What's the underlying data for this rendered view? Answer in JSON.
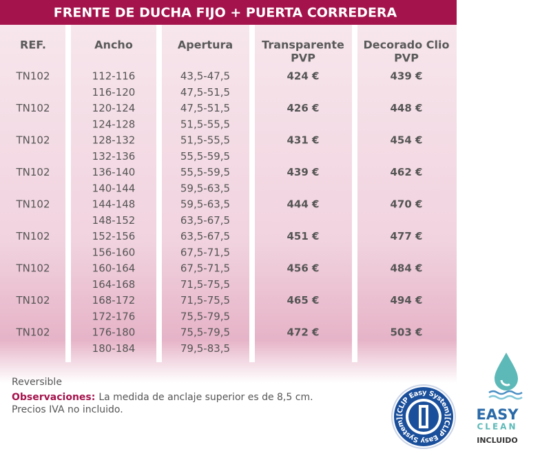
{
  "header": {
    "title": "FRENTE DE DUCHA FIJO + PUERTA CORREDERA"
  },
  "table": {
    "columns": [
      [
        "REF."
      ],
      [
        "Ancho"
      ],
      [
        "Apertura"
      ],
      [
        "Transparente",
        "PVP"
      ],
      [
        "Decorado Clio",
        "PVP"
      ]
    ],
    "rows": [
      {
        "ref": "TN102",
        "ancho": [
          "112-116",
          "116-120"
        ],
        "apertura": [
          "43,5-47,5",
          "47,5-51,5"
        ],
        "transparente": "424 €",
        "decorado": "439 €"
      },
      {
        "ref": "TN102",
        "ancho": [
          "120-124",
          "124-128"
        ],
        "apertura": [
          "47,5-51,5",
          "51,5-55,5"
        ],
        "transparente": "426 €",
        "decorado": "448 €"
      },
      {
        "ref": "TN102",
        "ancho": [
          "128-132",
          "132-136"
        ],
        "apertura": [
          "51,5-55,5",
          "55,5-59,5"
        ],
        "transparente": "431 €",
        "decorado": "454 €"
      },
      {
        "ref": "TN102",
        "ancho": [
          "136-140",
          "140-144"
        ],
        "apertura": [
          "55,5-59,5",
          "59,5-63,5"
        ],
        "transparente": "439 €",
        "decorado": "462 €"
      },
      {
        "ref": "TN102",
        "ancho": [
          "144-148",
          "148-152"
        ],
        "apertura": [
          "59,5-63,5",
          "63,5-67,5"
        ],
        "transparente": "444 €",
        "decorado": "470 €"
      },
      {
        "ref": "TN102",
        "ancho": [
          "152-156",
          "156-160"
        ],
        "apertura": [
          "63,5-67,5",
          "67,5-71,5"
        ],
        "transparente": "451 €",
        "decorado": "477 €"
      },
      {
        "ref": "TN102",
        "ancho": [
          "160-164",
          "164-168"
        ],
        "apertura": [
          "67,5-71,5",
          "71,5-75,5"
        ],
        "transparente": "456 €",
        "decorado": "484 €"
      },
      {
        "ref": "TN102",
        "ancho": [
          "168-172",
          "172-176"
        ],
        "apertura": [
          "71,5-75,5",
          "75,5-79,5"
        ],
        "transparente": "465 €",
        "decorado": "494 €"
      },
      {
        "ref": "TN102",
        "ancho": [
          "176-180",
          "180-184"
        ],
        "apertura": [
          "75,5-79,5",
          "79,5-83,5"
        ],
        "transparente": "472 €",
        "decorado": "503 €"
      }
    ]
  },
  "notes": {
    "reversible": "Reversible",
    "observaciones_label": "Observaciones:",
    "observaciones_text": "La medida de anclaje superior es de 8,5 cm.",
    "precios": "Precios IVA no incluido."
  },
  "logos": {
    "clip_badge": "[CLIP Easy System]",
    "easy_clean": {
      "line1": "EASY",
      "line2": "CLEAN",
      "note": "INCLUIDO"
    }
  }
}
